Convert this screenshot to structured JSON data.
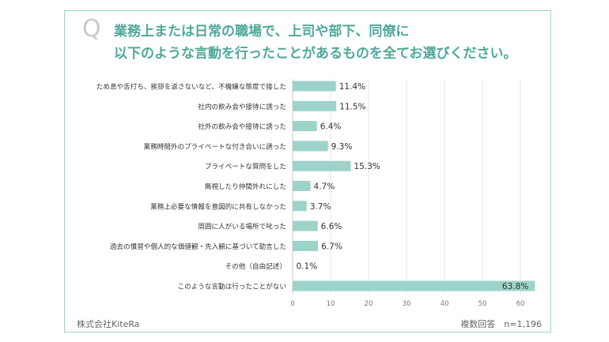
{
  "q_mark": "Q",
  "title_line1": "業務上または日常の職場で、上司や部下、同僚に",
  "title_line2": "以下のような言動を行ったことがあるものを全てお選びください。",
  "company": "株式会社KiteRa",
  "note": "複数回答　n=1,196",
  "colors": {
    "accent": "#4fa899",
    "bar": "#9dd3c9",
    "frame": "#9fd6cc"
  },
  "chart_data": {
    "type": "bar",
    "orientation": "horizontal",
    "title": "",
    "xlabel": "",
    "ylabel": "",
    "xlim": [
      0,
      65
    ],
    "xticks": [
      0,
      10,
      20,
      30,
      40,
      50,
      60
    ],
    "grid": true,
    "categories": [
      "ため息や舌打ち、挨拶を返さないなど、不機嫌な態度で接した",
      "社内の飲み会や接待に誘った",
      "社外の飲み会や接待に誘った",
      "業務時間外のプライベートな付き合いに誘った",
      "プライベートな質問をした",
      "無視したり仲間外れにした",
      "業務上必要な情報を意図的に共有しなかった",
      "周囲に人がいる場所で叱った",
      "過去の慣習や個人的な価値観・先入観に基づいて助言した",
      "その他（自由記述）",
      "このような言動は行ったことがない"
    ],
    "values": [
      11.4,
      11.5,
      6.4,
      9.3,
      15.3,
      4.7,
      3.7,
      6.6,
      6.7,
      0.1,
      63.8
    ],
    "value_labels": [
      "11.4%",
      "11.5%",
      "6.4%",
      "9.3%",
      "15.3%",
      "4.7%",
      "3.7%",
      "6.6%",
      "6.7%",
      "0.1%",
      "63.8%"
    ]
  }
}
